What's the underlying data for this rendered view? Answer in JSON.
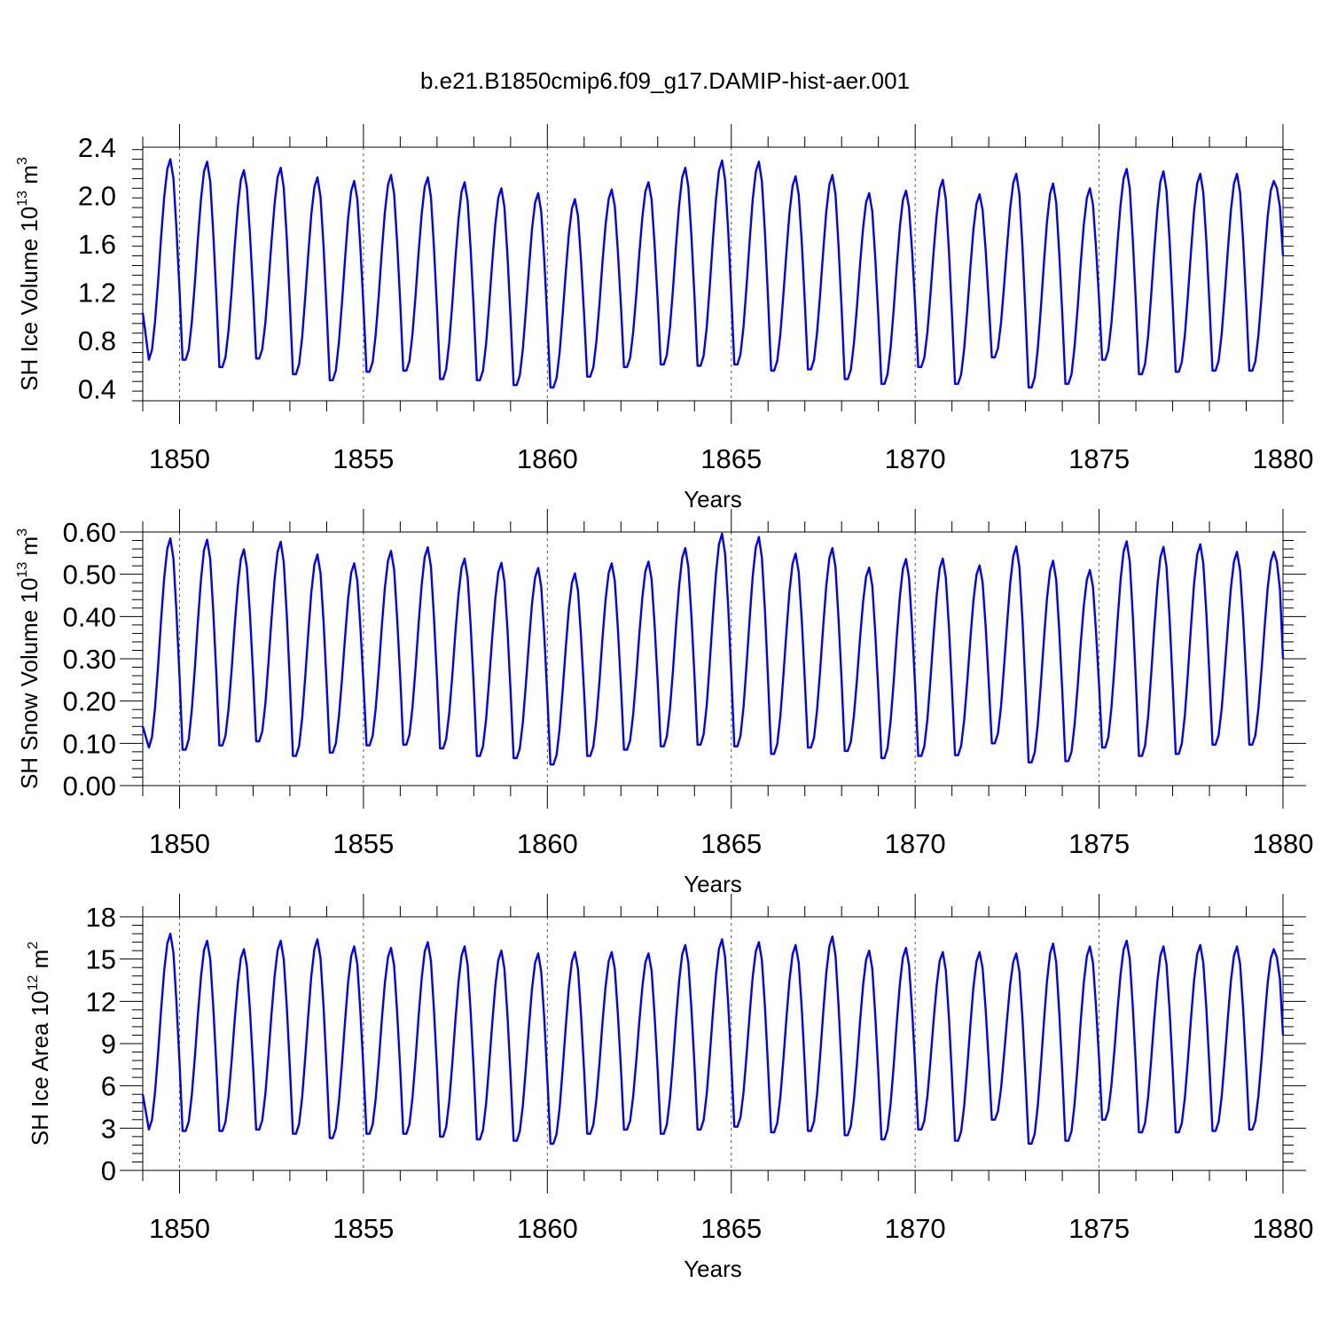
{
  "figure": {
    "title": "b.e21.B1850cmip6.f09_g17.DAMIP-hist-aer.001"
  },
  "colors": {
    "series": "#0000ff",
    "axes": "#000000",
    "grid": "#555555"
  },
  "chart_data": [
    {
      "type": "line",
      "ylabel": "SH Ice Volume 10",
      "ylabel_sup": "13",
      "ylabel_unit": "m",
      "ylabel_unit_sup": "3",
      "xlabel": "Years",
      "xlim": [
        1849.0,
        1880.0
      ],
      "ylim": [
        0.3,
        2.4
      ],
      "yticks": [
        0.4,
        0.8,
        1.2,
        1.6,
        2.0,
        2.4
      ],
      "ytick_labels": [
        "0.4",
        "0.8",
        "1.2",
        "1.6",
        "2.0",
        "2.4"
      ],
      "xticks": [
        1850,
        1855,
        1860,
        1865,
        1870,
        1875,
        1880
      ],
      "xtick_labels": [
        "1850",
        "1855",
        "1860",
        "1865",
        "1870",
        "1875",
        "1880"
      ],
      "grid": "x-dashed",
      "start": 1.03,
      "end": 1.5,
      "peaks": [
        2.3,
        2.28,
        2.21,
        2.23,
        2.15,
        2.12,
        2.17,
        2.15,
        2.11,
        2.06,
        2.02,
        1.97,
        2.05,
        2.11,
        2.23,
        2.29,
        2.28,
        2.16,
        2.17,
        2.02,
        2.04,
        2.13,
        2.01,
        2.18,
        2.1,
        2.06,
        2.22,
        2.2,
        2.18,
        2.18,
        2.12
      ],
      "troughs": [
        0.64,
        0.64,
        0.58,
        0.65,
        0.52,
        0.47,
        0.54,
        0.55,
        0.48,
        0.47,
        0.43,
        0.41,
        0.5,
        0.58,
        0.6,
        0.59,
        0.6,
        0.55,
        0.56,
        0.48,
        0.44,
        0.58,
        0.44,
        0.66,
        0.41,
        0.44,
        0.64,
        0.52,
        0.54,
        0.55,
        0.55
      ]
    },
    {
      "type": "line",
      "ylabel": "SH Snow Volume 10",
      "ylabel_sup": "13",
      "ylabel_unit": "m",
      "ylabel_unit_sup": "3",
      "xlabel": "Years",
      "xlim": [
        1849.0,
        1880.0
      ],
      "ylim": [
        0.0,
        0.6
      ],
      "yticks": [
        0.0,
        0.1,
        0.2,
        0.3,
        0.4,
        0.5,
        0.6
      ],
      "ytick_labels": [
        "0.00",
        "0.10",
        "0.20",
        "0.30",
        "0.40",
        "0.50",
        "0.60"
      ],
      "xticks": [
        1850,
        1855,
        1860,
        1865,
        1870,
        1875,
        1880
      ],
      "xtick_labels": [
        "1850",
        "1855",
        "1860",
        "1865",
        "1870",
        "1875",
        "1880"
      ],
      "grid": "x-dashed",
      "start": 0.14,
      "end": 0.3,
      "peaks": [
        0.585,
        0.582,
        0.559,
        0.577,
        0.547,
        0.526,
        0.555,
        0.564,
        0.537,
        0.527,
        0.515,
        0.502,
        0.526,
        0.53,
        0.562,
        0.596,
        0.588,
        0.549,
        0.562,
        0.516,
        0.536,
        0.537,
        0.521,
        0.566,
        0.532,
        0.51,
        0.578,
        0.565,
        0.571,
        0.553,
        0.553
      ],
      "troughs": [
        0.09,
        0.085,
        0.095,
        0.105,
        0.07,
        0.078,
        0.095,
        0.097,
        0.088,
        0.07,
        0.065,
        0.05,
        0.07,
        0.085,
        0.093,
        0.097,
        0.093,
        0.075,
        0.09,
        0.082,
        0.065,
        0.07,
        0.072,
        0.1,
        0.055,
        0.058,
        0.09,
        0.07,
        0.075,
        0.097,
        0.097
      ]
    },
    {
      "type": "line",
      "ylabel": "SH Ice Area 10",
      "ylabel_sup": "12",
      "ylabel_unit": "m",
      "ylabel_unit_sup": "2",
      "xlabel": "Years",
      "xlim": [
        1849.0,
        1880.0
      ],
      "ylim": [
        0,
        18
      ],
      "yticks": [
        0,
        3,
        6,
        9,
        12,
        15,
        18
      ],
      "ytick_labels": [
        "0",
        "3",
        "6",
        "9",
        "12",
        "15",
        "18"
      ],
      "xticks": [
        1850,
        1855,
        1860,
        1865,
        1870,
        1875,
        1880
      ],
      "xtick_labels": [
        "1850",
        "1855",
        "1860",
        "1865",
        "1870",
        "1875",
        "1880"
      ],
      "grid": "x-dashed",
      "start": 5.4,
      "end": 9.6,
      "peaks": [
        16.8,
        16.3,
        15.7,
        16.3,
        16.4,
        15.9,
        15.8,
        16.2,
        15.9,
        15.6,
        15.4,
        15.5,
        15.5,
        15.4,
        16.0,
        16.4,
        16.2,
        16.0,
        16.6,
        15.6,
        15.8,
        15.5,
        15.5,
        15.4,
        16.1,
        15.9,
        16.3,
        15.9,
        16.0,
        15.9,
        15.7
      ],
      "troughs": [
        2.9,
        2.8,
        2.8,
        2.9,
        2.6,
        2.3,
        2.6,
        2.6,
        2.4,
        2.2,
        2.1,
        1.9,
        2.6,
        2.9,
        2.6,
        2.9,
        3.1,
        2.7,
        2.8,
        2.5,
        2.2,
        2.9,
        2.1,
        3.6,
        1.9,
        2.1,
        3.6,
        2.7,
        2.7,
        2.8,
        2.9
      ]
    }
  ]
}
